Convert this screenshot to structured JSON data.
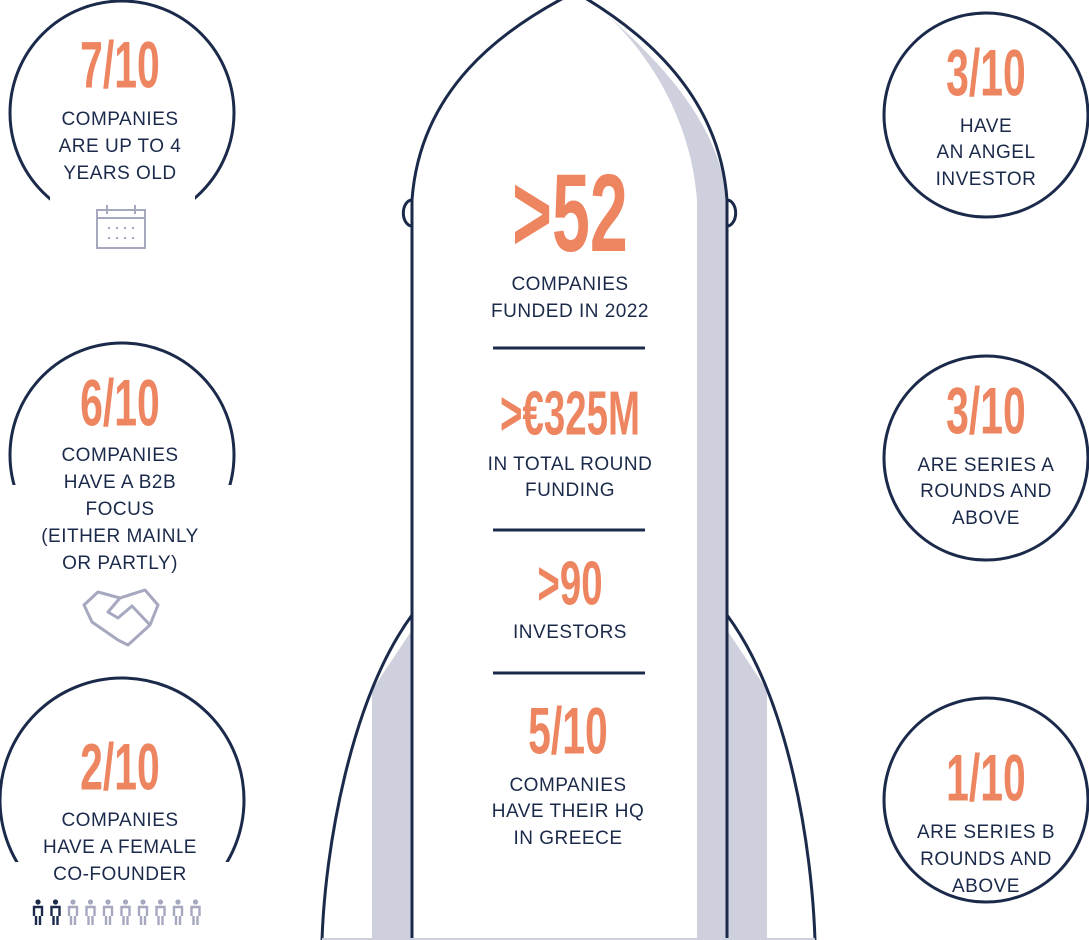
{
  "center_stats": [
    {
      "value": ">52",
      "lines": [
        "COMPANIES",
        "FUNDED IN 2022"
      ]
    },
    {
      "value": ">€325M",
      "lines": [
        "IN TOTAL ROUND",
        "FUNDING"
      ]
    },
    {
      "value": ">90",
      "lines": [
        "INVESTORS"
      ]
    },
    {
      "value": "5/10",
      "lines": [
        "COMPANIES",
        "HAVE THEIR HQ",
        "IN GREECE"
      ]
    }
  ],
  "left_stats": [
    {
      "value": "7/10",
      "lines": [
        "COMPANIES",
        "ARE UP TO 4",
        "YEARS OLD"
      ]
    },
    {
      "value": "6/10",
      "lines": [
        "COMPANIES",
        "HAVE A B2B",
        "FOCUS",
        "(EITHER MAINLY",
        "OR PARTLY)"
      ]
    },
    {
      "value": "2/10",
      "lines": [
        "COMPANIES",
        "HAVE A FEMALE",
        "CO-FOUNDER"
      ]
    }
  ],
  "right_stats": [
    {
      "value": "3/10",
      "lines": [
        "HAVE",
        "AN ANGEL",
        "INVESTOR"
      ]
    },
    {
      "value": "3/10",
      "lines": [
        "ARE SERIES A",
        "ROUNDS AND",
        "ABOVE"
      ]
    },
    {
      "value": "1/10",
      "lines": [
        "ARE SERIES B",
        "ROUNDS AND",
        "ABOVE"
      ]
    }
  ]
}
